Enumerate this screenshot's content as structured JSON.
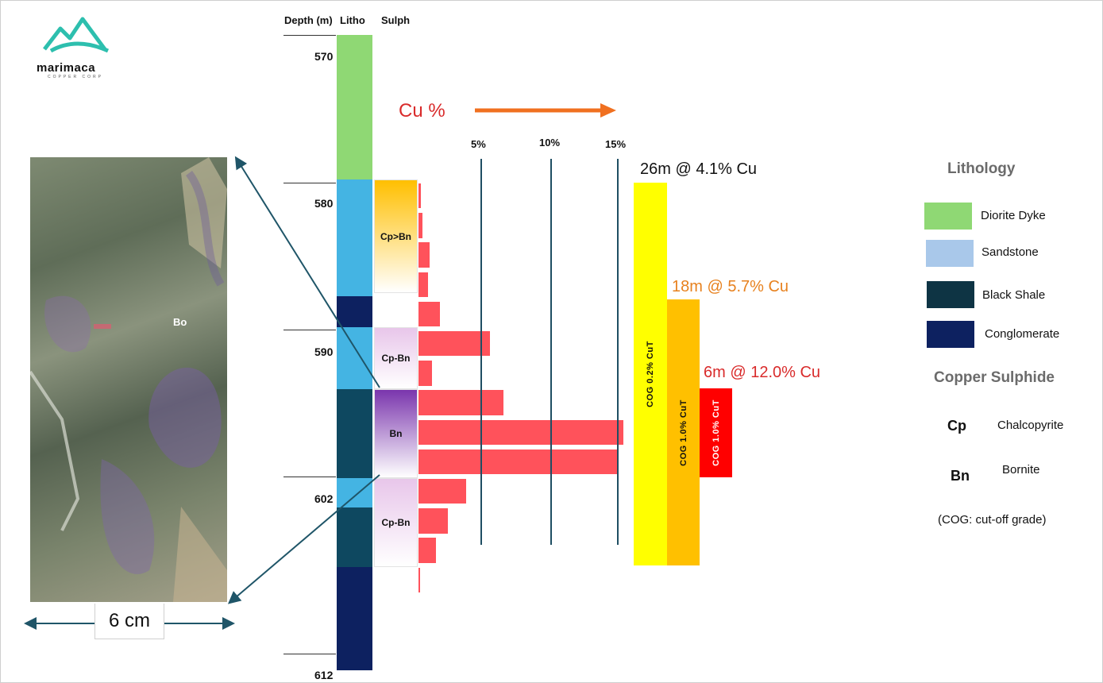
{
  "logo": {
    "name": "marimaca",
    "sub": "COPPER CORP"
  },
  "headers": {
    "depth": "Depth (m)",
    "litho": "Litho",
    "sulph": "Sulph"
  },
  "depth_labels": [
    "570",
    "580",
    "590",
    "602",
    "612"
  ],
  "cu_axis": {
    "title": "Cu %",
    "ticks": [
      "5%",
      "10%",
      "15%"
    ]
  },
  "photo": {
    "label": "Bo",
    "scale": "6 cm"
  },
  "sulphide_zones": [
    {
      "label": "Cp>Bn",
      "from": 579.8,
      "to": 587.5,
      "color": "#ffbf00"
    },
    {
      "label": "Cp-Bn",
      "from": 589.8,
      "to": 594.0,
      "color": "#e8c6ea"
    },
    {
      "label": "Bn",
      "from": 594.0,
      "to": 600.0,
      "color": "#7a35ad"
    },
    {
      "label": "Cp-Bn",
      "from": 600.0,
      "to": 606.0,
      "color": "#e8c6ea"
    }
  ],
  "intervals": [
    {
      "label": "26m @ 4.1% Cu",
      "cog": "COG  0.2%  CuT",
      "color": "#ffff00",
      "text_color": "#111111",
      "from": 579.8,
      "to": 606.0
    },
    {
      "label": "18m @ 5.7% Cu",
      "cog": "COG 1.0%  CuT",
      "color": "#ffc000",
      "text_color": "#e7811e",
      "from": 587.7,
      "to": 606.0
    },
    {
      "label": "6m @ 12.0% Cu",
      "cog": "COG 1.0%  CuT",
      "color": "#ff0000",
      "text_color": "#d92b2b",
      "from": 594.0,
      "to": 600.0
    }
  ],
  "legend": {
    "lithology_title": "Lithology",
    "lithology": [
      {
        "label": "Diorite Dyke",
        "color": "#8fd874"
      },
      {
        "label": "Sandstone",
        "color": "#a9c8ea"
      },
      {
        "label": "Black Shale",
        "color": "#0e3444"
      },
      {
        "label": "Conglomerate",
        "color": "#0d2160"
      }
    ],
    "sulphide_title": "Copper Sulphide",
    "sulphides": [
      {
        "code": "Cp",
        "name": "Chalcopyrite"
      },
      {
        "code": "Bn",
        "name": "Bornite"
      }
    ],
    "note": "(COG: cut-off grade)"
  },
  "chart_data": {
    "type": "bar",
    "orientation": "horizontal",
    "xlabel": "Cu %",
    "x_ticks": [
      5,
      10,
      15
    ],
    "y_axis": "Depth (m)",
    "depth_range": [
      568.5,
      613
    ],
    "lithology_log": [
      {
        "from": 568.5,
        "to": 579.8,
        "unit": "Diorite Dyke",
        "color": "#8fd874"
      },
      {
        "from": 579.8,
        "to": 587.7,
        "unit": "Sandstone",
        "color": "#44b4e3"
      },
      {
        "from": 587.7,
        "to": 589.8,
        "unit": "Conglomerate",
        "color": "#0d2160"
      },
      {
        "from": 589.8,
        "to": 594.0,
        "unit": "Sandstone",
        "color": "#44b4e3"
      },
      {
        "from": 594.0,
        "to": 600.0,
        "unit": "Black Shale",
        "color": "#0e4860"
      },
      {
        "from": 600.0,
        "to": 602.0,
        "unit": "Sandstone",
        "color": "#44b4e3"
      },
      {
        "from": 602.0,
        "to": 606.0,
        "unit": "Black Shale",
        "color": "#0e4860"
      },
      {
        "from": 606.0,
        "to": 613.0,
        "unit": "Conglomerate",
        "color": "#0d2160"
      }
    ],
    "cu_samples": [
      {
        "from": 580.0,
        "to": 581.8,
        "cu": 0.2
      },
      {
        "from": 582.0,
        "to": 583.8,
        "cu": 0.3
      },
      {
        "from": 584.0,
        "to": 585.8,
        "cu": 0.8
      },
      {
        "from": 586.0,
        "to": 587.8,
        "cu": 0.7
      },
      {
        "from": 588.0,
        "to": 589.8,
        "cu": 1.6
      },
      {
        "from": 590.0,
        "to": 591.8,
        "cu": 5.3
      },
      {
        "from": 592.0,
        "to": 593.8,
        "cu": 1.0
      },
      {
        "from": 594.0,
        "to": 595.8,
        "cu": 6.3
      },
      {
        "from": 596.0,
        "to": 597.8,
        "cu": 15.2
      },
      {
        "from": 598.0,
        "to": 599.8,
        "cu": 14.7
      },
      {
        "from": 600.0,
        "to": 601.8,
        "cu": 3.5
      },
      {
        "from": 602.0,
        "to": 603.8,
        "cu": 2.2
      },
      {
        "from": 604.0,
        "to": 605.8,
        "cu": 1.3
      },
      {
        "from": 606.0,
        "to": 607.8,
        "cu": 0.1
      }
    ]
  }
}
